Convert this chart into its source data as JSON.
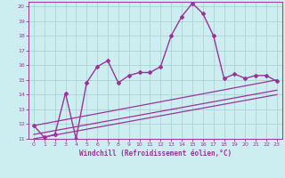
{
  "title": "",
  "xlabel": "Windchill (Refroidissement éolien,°C)",
  "ylabel": "",
  "xlim": [
    -0.5,
    23.5
  ],
  "ylim": [
    11,
    20.3
  ],
  "yticks": [
    11,
    12,
    13,
    14,
    15,
    16,
    17,
    18,
    19,
    20
  ],
  "xticks": [
    0,
    1,
    2,
    3,
    4,
    5,
    6,
    7,
    8,
    9,
    10,
    11,
    12,
    13,
    14,
    15,
    16,
    17,
    18,
    19,
    20,
    21,
    22,
    23
  ],
  "background_color": "#cceef0",
  "grid_color": "#aacccc",
  "line_color": "#993399",
  "lines": [
    {
      "x": [
        0,
        1,
        2,
        3,
        4,
        5,
        6,
        7,
        8,
        9,
        10,
        11,
        12,
        13,
        14,
        15,
        16,
        17,
        18,
        19,
        20,
        21,
        22,
        23
      ],
      "y": [
        11.9,
        11.1,
        11.3,
        14.1,
        11.0,
        14.8,
        15.9,
        16.3,
        14.8,
        15.3,
        15.5,
        15.5,
        15.9,
        18.0,
        19.3,
        20.2,
        19.5,
        18.0,
        15.1,
        15.4,
        15.1,
        15.3,
        15.3,
        14.9
      ],
      "marker": "D",
      "markersize": 2.0,
      "linewidth": 1.0
    },
    {
      "x": [
        0,
        23
      ],
      "y": [
        11.9,
        15.0
      ],
      "marker": null,
      "linewidth": 0.9
    },
    {
      "x": [
        0,
        23
      ],
      "y": [
        11.3,
        14.3
      ],
      "marker": null,
      "linewidth": 0.9
    },
    {
      "x": [
        0,
        23
      ],
      "y": [
        11.0,
        14.0
      ],
      "marker": null,
      "linewidth": 0.9
    }
  ]
}
